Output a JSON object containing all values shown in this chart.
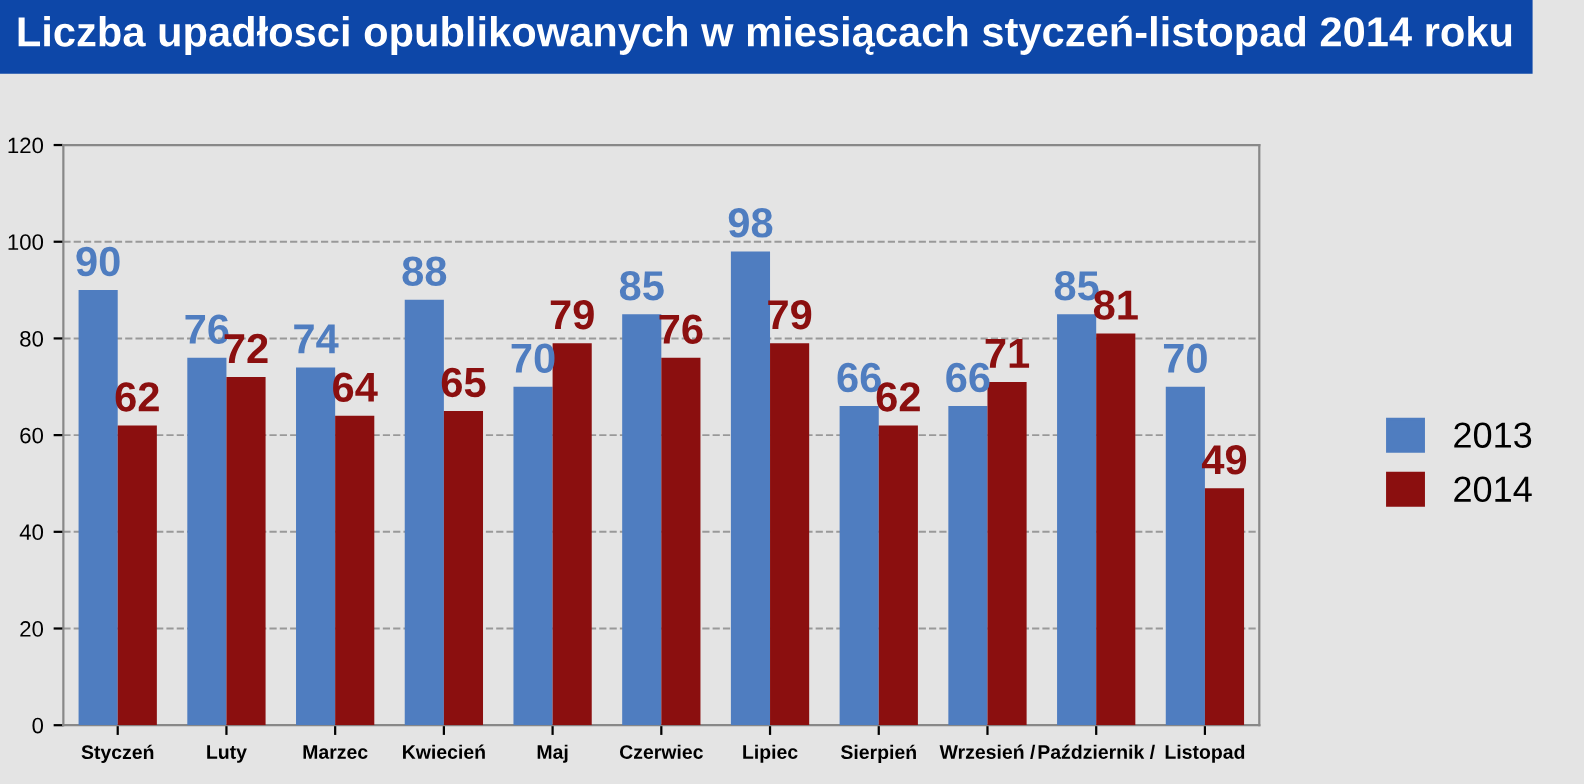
{
  "chart_data": {
    "type": "bar",
    "title": "Liczba upadłosci opublikowanych w miesiącach styczeń-listopad 2014 roku",
    "categories": [
      "Styczeń",
      "Luty",
      "Marzec",
      "Kwiecień",
      "Maj",
      "Czerwiec",
      "Lipiec",
      "Sierpień",
      "Wrzesień /",
      "Październik /",
      "Listopad"
    ],
    "series": [
      {
        "name": "2013",
        "color": "#4f7dc0",
        "values": [
          90,
          76,
          74,
          88,
          70,
          85,
          98,
          66,
          66,
          85,
          70
        ]
      },
      {
        "name": "2014",
        "color": "#8b0f0f",
        "values": [
          62,
          72,
          64,
          65,
          79,
          76,
          79,
          62,
          71,
          81,
          49
        ]
      }
    ],
    "ylim": [
      0,
      120
    ],
    "yticks": [
      0,
      20,
      40,
      60,
      80,
      100,
      120
    ],
    "grid": "y",
    "legend": "right",
    "data_labels": true
  }
}
